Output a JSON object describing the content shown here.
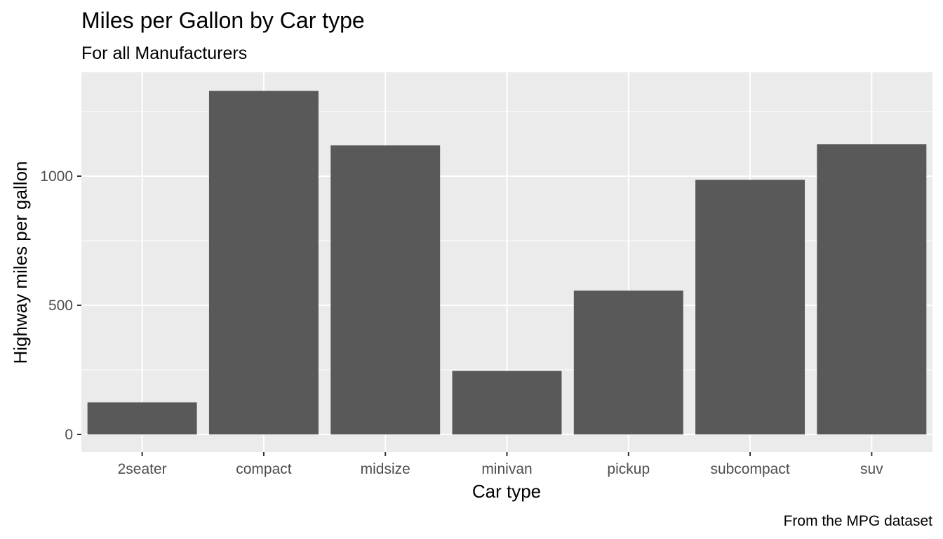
{
  "chart_data": {
    "type": "bar",
    "title": "Miles per Gallon by Car type",
    "subtitle": "For all Manufacturers",
    "caption": "From the MPG dataset",
    "xlabel": "Car type",
    "ylabel": "Highway miles per gallon",
    "categories": [
      "2seater",
      "compact",
      "midsize",
      "minivan",
      "pickup",
      "subcompact",
      "suv"
    ],
    "values": [
      124,
      1330,
      1119,
      246,
      557,
      986,
      1124
    ],
    "ylim": [
      -70,
      1400
    ],
    "y_ticks": [
      0,
      500,
      1000
    ],
    "y_tick_labels": [
      "0",
      "500",
      "1000"
    ],
    "grid": true,
    "colors": {
      "bar": "#595959",
      "panel": "#ebebeb",
      "grid": "#ffffff",
      "tick_text": "#4d4d4d",
      "tick_mark": "#333333"
    }
  }
}
